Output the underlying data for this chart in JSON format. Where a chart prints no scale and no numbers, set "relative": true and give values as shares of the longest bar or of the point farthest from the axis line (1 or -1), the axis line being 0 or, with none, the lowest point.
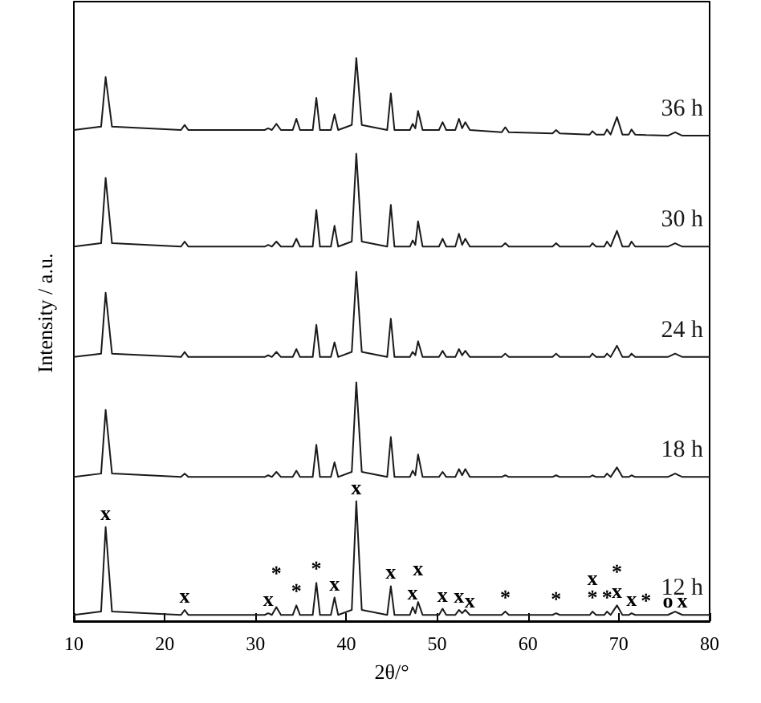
{
  "chart_data": {
    "type": "line",
    "relative": true,
    "xlabel": "2θ/°",
    "ylabel": "Intensity / a.u.",
    "xlim": [
      10,
      80
    ],
    "xticks": [
      10,
      20,
      30,
      40,
      50,
      60,
      70,
      80
    ],
    "marker": "none",
    "legend": false,
    "tick_labels": "x",
    "x": [
      10,
      13.0,
      13.5,
      14.2,
      21.8,
      22.2,
      22.6,
      31.0,
      31.4,
      31.8,
      32.3,
      32.8,
      34.1,
      34.5,
      34.9,
      36.3,
      36.7,
      37.1,
      38.3,
      38.7,
      39.1,
      40.6,
      41.1,
      41.7,
      44.5,
      44.9,
      45.3,
      47.0,
      47.3,
      47.6,
      47.9,
      48.4,
      50.2,
      50.6,
      51.0,
      52.0,
      52.4,
      52.75,
      53.1,
      53.6,
      57.1,
      57.5,
      57.9,
      62.7,
      63.1,
      63.5,
      66.8,
      67.1,
      67.5,
      68.4,
      68.7,
      69.1,
      69.8,
      70.4,
      71.1,
      71.4,
      71.8,
      73.0,
      75.4,
      76.2,
      77.0,
      80
    ],
    "series": [
      {
        "name": "12 h",
        "color": "#1a1a1a",
        "values": [
          0.011,
          0.017,
          0.167,
          0.017,
          0.011,
          0.02,
          0.011,
          0.011,
          0.014,
          0.011,
          0.025,
          0.011,
          0.011,
          0.028,
          0.011,
          0.011,
          0.068,
          0.011,
          0.011,
          0.042,
          0.011,
          0.02,
          0.213,
          0.02,
          0.011,
          0.062,
          0.011,
          0.011,
          0.025,
          0.014,
          0.034,
          0.011,
          0.011,
          0.022,
          0.011,
          0.011,
          0.02,
          0.014,
          0.02,
          0.011,
          0.011,
          0.017,
          0.011,
          0.011,
          0.014,
          0.011,
          0.011,
          0.017,
          0.011,
          0.011,
          0.017,
          0.011,
          0.028,
          0.011,
          0.011,
          0.014,
          0.011,
          0.011,
          0.011,
          0.017,
          0.011,
          0.011
        ]
      },
      {
        "name": "18 h",
        "color": "#1a1a1a",
        "values": [
          0.256,
          0.262,
          0.375,
          0.262,
          0.256,
          0.262,
          0.256,
          0.256,
          0.259,
          0.256,
          0.265,
          0.256,
          0.256,
          0.267,
          0.256,
          0.256,
          0.313,
          0.256,
          0.256,
          0.282,
          0.256,
          0.265,
          0.424,
          0.265,
          0.256,
          0.327,
          0.256,
          0.256,
          0.267,
          0.259,
          0.296,
          0.256,
          0.256,
          0.265,
          0.256,
          0.256,
          0.27,
          0.259,
          0.27,
          0.256,
          0.256,
          0.259,
          0.256,
          0.256,
          0.259,
          0.256,
          0.256,
          0.259,
          0.256,
          0.256,
          0.262,
          0.256,
          0.273,
          0.256,
          0.256,
          0.259,
          0.256,
          0.256,
          0.256,
          0.262,
          0.256,
          0.256
        ]
      },
      {
        "name": "24 h",
        "color": "#1a1a1a",
        "values": [
          0.469,
          0.475,
          0.583,
          0.475,
          0.469,
          0.478,
          0.469,
          0.469,
          0.472,
          0.469,
          0.478,
          0.469,
          0.469,
          0.483,
          0.469,
          0.469,
          0.526,
          0.469,
          0.469,
          0.495,
          0.469,
          0.478,
          0.62,
          0.478,
          0.469,
          0.537,
          0.469,
          0.469,
          0.478,
          0.472,
          0.497,
          0.469,
          0.469,
          0.48,
          0.469,
          0.469,
          0.483,
          0.472,
          0.48,
          0.469,
          0.469,
          0.475,
          0.469,
          0.469,
          0.475,
          0.469,
          0.469,
          0.475,
          0.469,
          0.469,
          0.475,
          0.469,
          0.489,
          0.469,
          0.469,
          0.475,
          0.469,
          0.469,
          0.469,
          0.475,
          0.469,
          0.469
        ]
      },
      {
        "name": "30 h",
        "color": "#1a1a1a",
        "values": [
          0.665,
          0.671,
          0.787,
          0.671,
          0.665,
          0.674,
          0.665,
          0.665,
          0.668,
          0.665,
          0.674,
          0.665,
          0.665,
          0.679,
          0.665,
          0.665,
          0.73,
          0.665,
          0.665,
          0.702,
          0.665,
          0.674,
          0.83,
          0.674,
          0.665,
          0.739,
          0.665,
          0.665,
          0.676,
          0.668,
          0.71,
          0.665,
          0.665,
          0.679,
          0.665,
          0.665,
          0.688,
          0.668,
          0.679,
          0.665,
          0.665,
          0.671,
          0.665,
          0.665,
          0.671,
          0.665,
          0.665,
          0.671,
          0.665,
          0.665,
          0.674,
          0.665,
          0.693,
          0.665,
          0.665,
          0.674,
          0.665,
          0.665,
          0.665,
          0.671,
          0.665,
          0.665
        ]
      },
      {
        "name": "36 h",
        "color": "#1a1a1a",
        "values": [
          0.872,
          0.878,
          0.966,
          0.878,
          0.872,
          0.881,
          0.872,
          0.872,
          0.875,
          0.872,
          0.883,
          0.872,
          0.872,
          0.892,
          0.872,
          0.872,
          0.929,
          0.872,
          0.872,
          0.9,
          0.872,
          0.881,
          1.0,
          0.881,
          0.872,
          0.937,
          0.872,
          0.872,
          0.883,
          0.875,
          0.906,
          0.872,
          0.872,
          0.886,
          0.872,
          0.872,
          0.892,
          0.875,
          0.886,
          0.872,
          0.868,
          0.877,
          0.868,
          0.866,
          0.872,
          0.866,
          0.864,
          0.87,
          0.864,
          0.864,
          0.873,
          0.864,
          0.895,
          0.864,
          0.864,
          0.873,
          0.864,
          0.863,
          0.862,
          0.868,
          0.862,
          0.862
        ]
      }
    ],
    "annotations": [
      {
        "text": "x",
        "x": 13.5,
        "y": 0.167
      },
      {
        "text": "x",
        "x": 22.2,
        "y": 0.02
      },
      {
        "text": "x",
        "x": 31.4,
        "y": 0.014
      },
      {
        "text": "*",
        "x": 32.3,
        "y": 0.025
      },
      {
        "text": "*",
        "x": 34.5,
        "y": 0.028
      },
      {
        "text": "*",
        "x": 36.7,
        "y": 0.068
      },
      {
        "text": "x",
        "x": 38.7,
        "y": 0.042
      },
      {
        "text": "x",
        "x": 41.1,
        "y": 0.213
      },
      {
        "text": "x",
        "x": 44.9,
        "y": 0.062
      },
      {
        "text": "x",
        "x": 47.3,
        "y": 0.025
      },
      {
        "text": "x",
        "x": 47.9,
        "y": 0.034
      },
      {
        "text": "x",
        "x": 50.6,
        "y": 0.022
      },
      {
        "text": "x",
        "x": 52.4,
        "y": 0.02
      },
      {
        "text": "x",
        "x": 53.6,
        "y": 0.011
      },
      {
        "text": "*",
        "x": 57.5,
        "y": 0.017
      },
      {
        "text": "*",
        "x": 63.1,
        "y": 0.014
      },
      {
        "text": "*",
        "x": 67.1,
        "y": 0.017
      },
      {
        "text": "x",
        "x": 67.1,
        "y": 0.017
      },
      {
        "text": "*",
        "x": 68.7,
        "y": 0.017
      },
      {
        "text": "x",
        "x": 69.8,
        "y": 0.028
      },
      {
        "text": "*",
        "x": 69.8,
        "y": 0.028
      },
      {
        "text": "x",
        "x": 71.4,
        "y": 0.014
      },
      {
        "text": "*",
        "x": 73.0,
        "y": 0.011
      },
      {
        "text": "o",
        "x": 75.4,
        "y": 0.011
      },
      {
        "text": "x",
        "x": 77.0,
        "y": 0.011
      }
    ]
  }
}
